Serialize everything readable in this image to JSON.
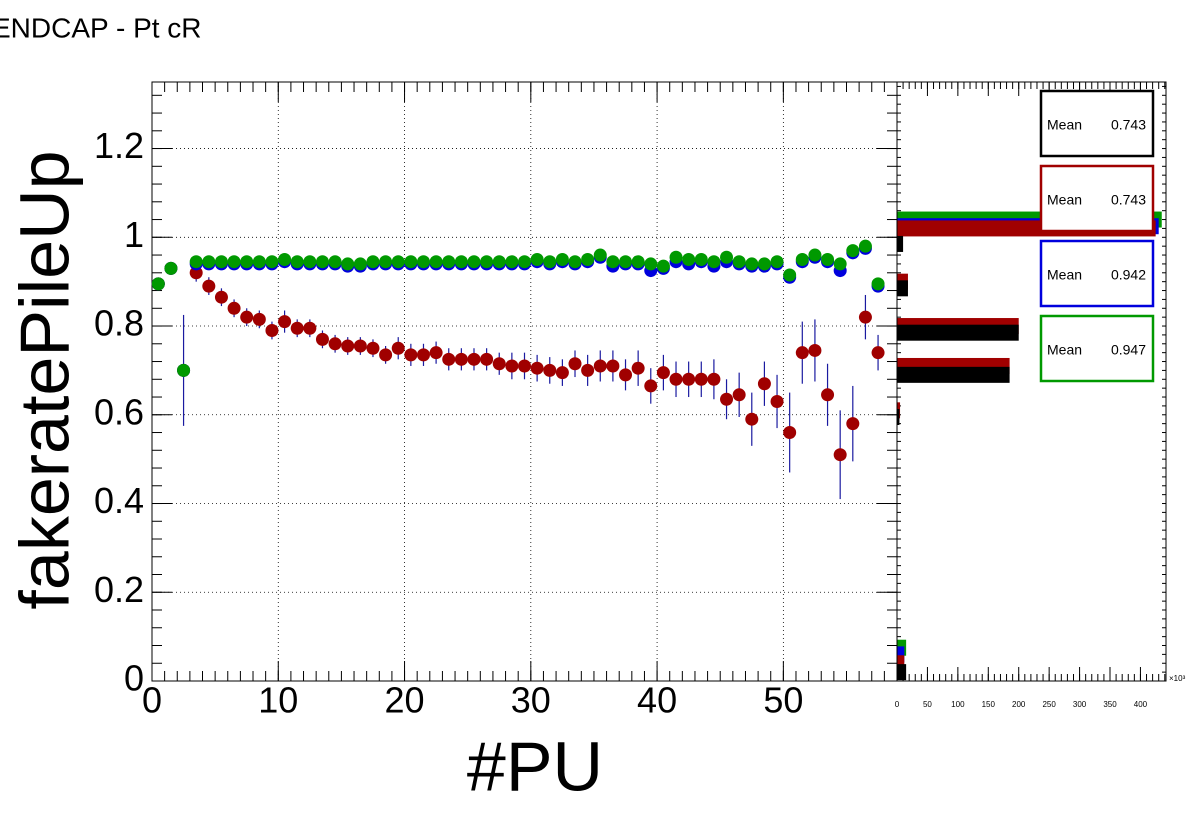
{
  "chart_data": [
    {
      "type": "scatter",
      "title": "ENDCAP - Pt cR",
      "x_label": "#PU",
      "y_label": "fakeratePileUp",
      "xlim": [
        0,
        59
      ],
      "ylim": [
        0,
        1.35
      ],
      "xticks": [
        0,
        10,
        20,
        30,
        40,
        50
      ],
      "yticks": [
        0,
        0.2,
        0.4,
        0.6,
        0.8,
        1,
        1.2
      ],
      "grid": true,
      "x": [
        0.5,
        1.5,
        2.5,
        3.5,
        4.5,
        5.5,
        6.5,
        7.5,
        8.5,
        9.5,
        10.5,
        11.5,
        12.5,
        13.5,
        14.5,
        15.5,
        16.5,
        17.5,
        18.5,
        19.5,
        20.5,
        21.5,
        22.5,
        23.5,
        24.5,
        25.5,
        26.5,
        27.5,
        28.5,
        29.5,
        30.5,
        31.5,
        32.5,
        33.5,
        34.5,
        35.5,
        36.5,
        37.5,
        38.5,
        39.5,
        40.5,
        41.5,
        42.5,
        43.5,
        44.5,
        45.5,
        46.5,
        47.5,
        48.5,
        49.5,
        50.5,
        51.5,
        52.5,
        53.5,
        54.5,
        55.5,
        56.5,
        57.5
      ],
      "series": [
        {
          "color": "#a00000",
          "error_color": "#1a1aa0",
          "values": [
            0.895,
            0.93,
            0.7,
            0.92,
            0.89,
            0.865,
            0.84,
            0.82,
            0.815,
            0.79,
            0.81,
            0.795,
            0.795,
            0.77,
            0.76,
            0.755,
            0.755,
            0.75,
            0.735,
            0.75,
            0.735,
            0.735,
            0.74,
            0.725,
            0.725,
            0.725,
            0.725,
            0.715,
            0.71,
            0.71,
            0.705,
            0.7,
            0.695,
            0.715,
            0.7,
            0.71,
            0.71,
            0.69,
            0.705,
            0.665,
            0.695,
            0.68,
            0.68,
            0.68,
            0.68,
            0.635,
            0.645,
            0.59,
            0.67,
            0.63,
            0.56,
            0.74,
            0.745,
            0.645,
            0.51,
            0.58,
            0.82,
            0.74
          ],
          "errors": [
            0.01,
            0.01,
            0.125,
            0.02,
            0.02,
            0.02,
            0.02,
            0.02,
            0.02,
            0.02,
            0.025,
            0.02,
            0.02,
            0.02,
            0.02,
            0.02,
            0.02,
            0.02,
            0.02,
            0.025,
            0.025,
            0.025,
            0.025,
            0.025,
            0.025,
            0.025,
            0.025,
            0.025,
            0.03,
            0.03,
            0.03,
            0.03,
            0.03,
            0.03,
            0.035,
            0.035,
            0.035,
            0.035,
            0.04,
            0.04,
            0.04,
            0.04,
            0.04,
            0.04,
            0.045,
            0.045,
            0.05,
            0.06,
            0.05,
            0.06,
            0.09,
            0.07,
            0.07,
            0.07,
            0.1,
            0.085,
            0.05,
            0.04
          ]
        },
        {
          "color": "#0000dd",
          "values": [
            0.895,
            0.93,
            0.7,
            0.94,
            0.94,
            0.94,
            0.94,
            0.94,
            0.94,
            0.94,
            0.945,
            0.94,
            0.94,
            0.94,
            0.94,
            0.935,
            0.935,
            0.94,
            0.94,
            0.94,
            0.94,
            0.94,
            0.94,
            0.94,
            0.94,
            0.94,
            0.94,
            0.94,
            0.94,
            0.94,
            0.945,
            0.94,
            0.945,
            0.94,
            0.945,
            0.955,
            0.935,
            0.94,
            0.94,
            0.925,
            0.93,
            0.945,
            0.94,
            0.945,
            0.935,
            0.945,
            0.94,
            0.935,
            0.935,
            0.94,
            0.91,
            0.945,
            0.955,
            0.945,
            0.925,
            0.965,
            0.975,
            0.89
          ]
        },
        {
          "color": "#009900",
          "values": [
            0.895,
            0.93,
            0.7,
            0.945,
            0.945,
            0.945,
            0.945,
            0.945,
            0.945,
            0.945,
            0.95,
            0.945,
            0.945,
            0.945,
            0.945,
            0.94,
            0.94,
            0.945,
            0.945,
            0.945,
            0.945,
            0.945,
            0.945,
            0.945,
            0.945,
            0.945,
            0.945,
            0.945,
            0.945,
            0.945,
            0.95,
            0.945,
            0.95,
            0.945,
            0.95,
            0.96,
            0.945,
            0.945,
            0.945,
            0.94,
            0.935,
            0.955,
            0.95,
            0.95,
            0.945,
            0.955,
            0.945,
            0.94,
            0.94,
            0.945,
            0.915,
            0.95,
            0.96,
            0.95,
            0.94,
            0.97,
            0.98,
            0.895
          ]
        }
      ]
    },
    {
      "type": "hbar",
      "xlim": [
        0,
        442
      ],
      "ylim": [
        0,
        1.35
      ],
      "xticks": [
        {
          "value": 0,
          "label": "0"
        },
        50,
        100,
        150,
        200,
        250,
        300,
        350,
        400
      ],
      "x_unit": "×10³",
      "series": [
        {
          "color": "#000000",
          "y": [
            0.985,
            0.885,
            0.785,
            0.69,
            0.595,
            0.02
          ],
          "values": [
            10,
            18,
            200,
            185,
            4,
            15
          ]
        },
        {
          "color": "#a00000",
          "y": [
            1.02,
            0.9,
            0.8,
            0.71,
            0.61,
            0.04
          ],
          "values": [
            425,
            18,
            200,
            185,
            5,
            12
          ]
        },
        {
          "color": "#0000dd",
          "y": [
            1.025,
            0.06
          ],
          "values": [
            430,
            12
          ]
        },
        {
          "color": "#009900",
          "y": [
            1.04,
            0.075
          ],
          "values": [
            435,
            15
          ]
        }
      ],
      "stats": [
        {
          "label": "Mean",
          "value": 0.743,
          "color": "#000000"
        },
        {
          "label": "Mean",
          "value": 0.743,
          "color": "#a00000"
        },
        {
          "label": "Mean",
          "value": 0.942,
          "color": "#0000dd"
        },
        {
          "label": "Mean",
          "value": 0.947,
          "color": "#009900"
        }
      ]
    }
  ]
}
